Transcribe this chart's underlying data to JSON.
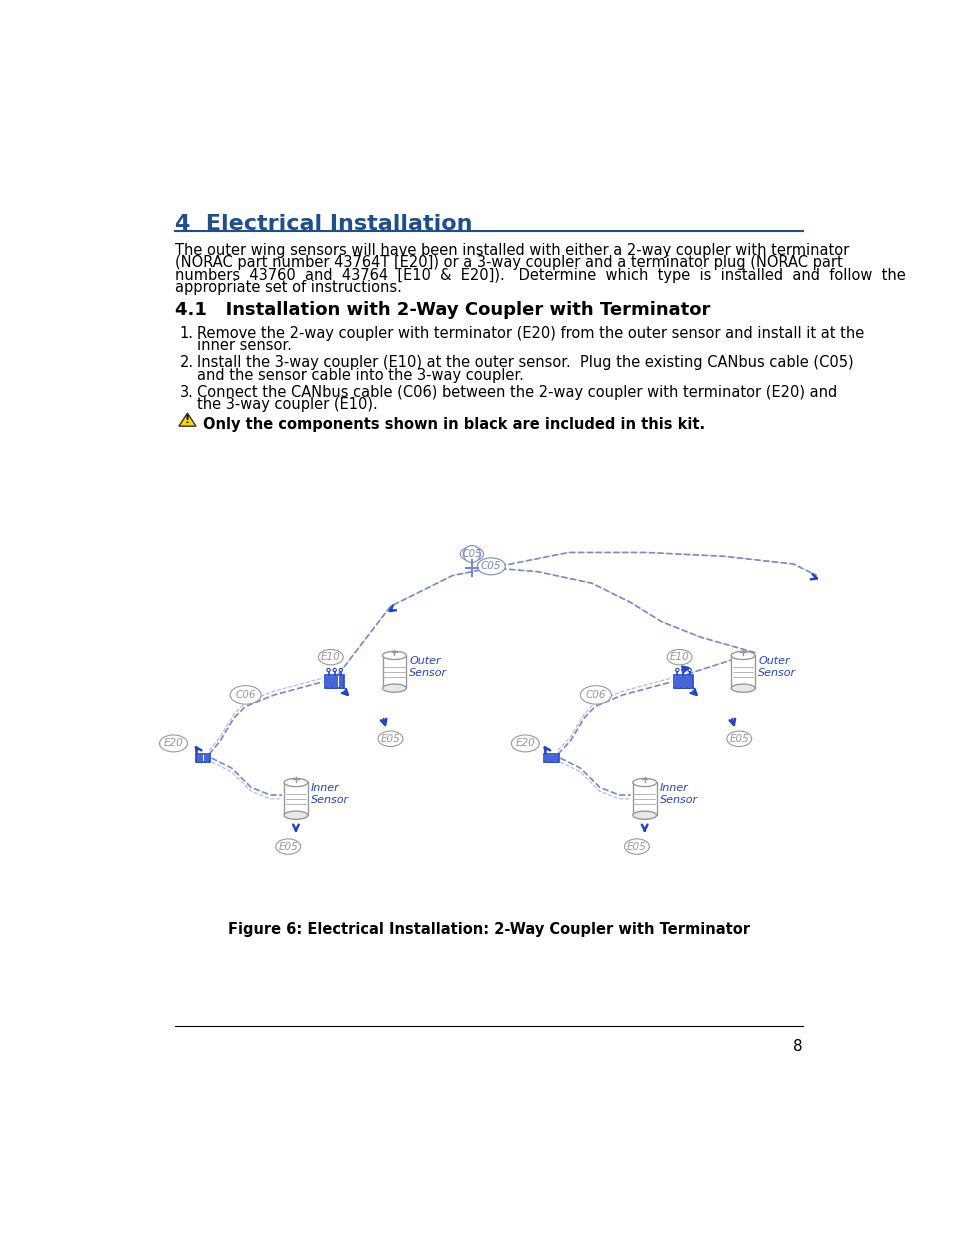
{
  "page_bg": "#ffffff",
  "title": "4  Electrical Installation",
  "title_color": "#1f4e8c",
  "title_fontsize": 16,
  "section_title": "4.1   Installation with 2-Way Coupler with Terminator",
  "section_title_fontsize": 13,
  "body_fontsize": 10.5,
  "body_color": "#000000",
  "para1_lines": [
    "The outer wing sensors will have been installed with either a 2-way coupler with terminator",
    "(NORAC part number 43764T [E20]) or a 3-way coupler and a terminator plug (NORAC part",
    "numbers  43760  and  43764  [E10  &  E20]).   Determine  which  type  is  installed  and  follow  the",
    "appropriate set of instructions."
  ],
  "step1a": "Remove the 2-way coupler with terminator (E20) from the outer sensor and install it at the",
  "step1b": "inner sensor.",
  "step2a": "Install the 3-way coupler (E10) at the outer sensor.  Plug the existing CANbus cable (C05)",
  "step2b": "and the sensor cable into the 3-way coupler.",
  "step3a": "Connect the CANbus cable (C06) between the 2-way coupler with terminator (E20) and",
  "step3b": "the 3-way coupler (E10).",
  "warning_text": "Only the components shown in black are included in this kit.",
  "figure_caption": "Figure 6: Electrical Installation: 2-Way Coupler with Terminator",
  "page_number": "8",
  "blue": "#2244cc",
  "lblue": "#7788cc",
  "gray": "#555555",
  "lgray": "#999999",
  "dgray": "#333333"
}
